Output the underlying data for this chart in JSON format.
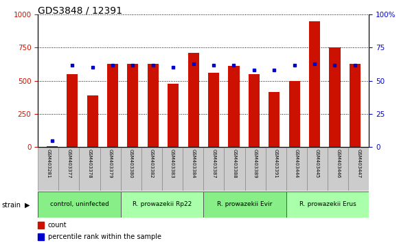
{
  "title": "GDS3848 / 12391",
  "samples": [
    "GSM403281",
    "GSM403377",
    "GSM403378",
    "GSM403379",
    "GSM403380",
    "GSM403382",
    "GSM403383",
    "GSM403384",
    "GSM403387",
    "GSM403388",
    "GSM403389",
    "GSM403391",
    "GSM403444",
    "GSM403445",
    "GSM403446",
    "GSM403447"
  ],
  "counts": [
    5,
    550,
    390,
    630,
    630,
    630,
    480,
    710,
    560,
    610,
    550,
    415,
    500,
    950,
    750,
    630
  ],
  "percentiles": [
    5,
    62,
    60,
    62,
    62,
    62,
    60,
    63,
    62,
    62,
    58,
    58,
    62,
    63,
    62,
    62
  ],
  "groups": [
    {
      "label": "control, uninfected",
      "start": 0,
      "end": 4,
      "color": "#88ee88"
    },
    {
      "label": "R. prowazekii Rp22",
      "start": 4,
      "end": 8,
      "color": "#aaffaa"
    },
    {
      "label": "R. prowazekii Evir",
      "start": 8,
      "end": 12,
      "color": "#88ee88"
    },
    {
      "label": "R. prowazekii Erus",
      "start": 12,
      "end": 16,
      "color": "#aaffaa"
    }
  ],
  "bar_color": "#cc1100",
  "dot_color": "#0000cc",
  "ylim_left": [
    0,
    1000
  ],
  "ylim_right": [
    0,
    100
  ],
  "yticks_left": [
    0,
    250,
    500,
    750,
    1000
  ],
  "yticks_right": [
    0,
    25,
    50,
    75,
    100
  ],
  "bar_width": 0.55,
  "strain_label": "strain"
}
